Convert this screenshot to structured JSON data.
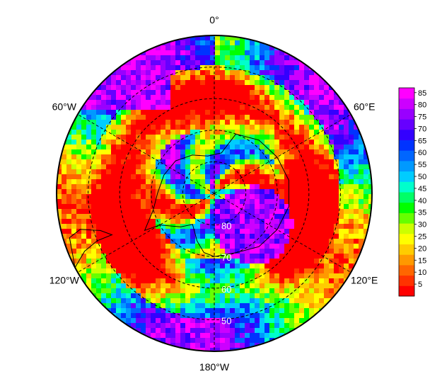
{
  "map": {
    "projection": "south-polar-stereographic",
    "longitude_labels": [
      {
        "text": "0°",
        "lon": 0
      },
      {
        "text": "60°E",
        "lon": 60
      },
      {
        "text": "120°E",
        "lon": 120
      },
      {
        "text": "180°W",
        "lon": 180
      },
      {
        "text": "120°W",
        "lon": -120
      },
      {
        "text": "60°W",
        "lon": -60
      }
    ],
    "latitude_labels": [
      {
        "text": "80",
        "lat": -80
      },
      {
        "text": "70",
        "lat": -70
      },
      {
        "text": "60",
        "lat": -60
      },
      {
        "text": "50",
        "lat": -50
      }
    ],
    "graticule_latitudes": [
      -80,
      -70,
      -60,
      -50
    ],
    "graticule_longitudes": [
      0,
      60,
      120,
      180,
      -120,
      -60
    ],
    "outer_latitude": -40,
    "colorbar": {
      "ticks": [
        "85",
        "80",
        "75",
        "70",
        "65",
        "60",
        "55",
        "50",
        "45",
        "40",
        "35",
        "30",
        "25",
        "20",
        "15",
        "10",
        "5"
      ],
      "min": 0,
      "max": 87,
      "colors": [
        "#ff0000",
        "#ff3300",
        "#ff6600",
        "#ff9900",
        "#ffcc00",
        "#ffff00",
        "#ccff00",
        "#66ff00",
        "#00ff00",
        "#00ff66",
        "#00ffcc",
        "#00ccff",
        "#0099ff",
        "#0066ff",
        "#0033ff",
        "#3300ff",
        "#6600ff",
        "#9900ff",
        "#cc00ff",
        "#ff00ff"
      ]
    }
  }
}
